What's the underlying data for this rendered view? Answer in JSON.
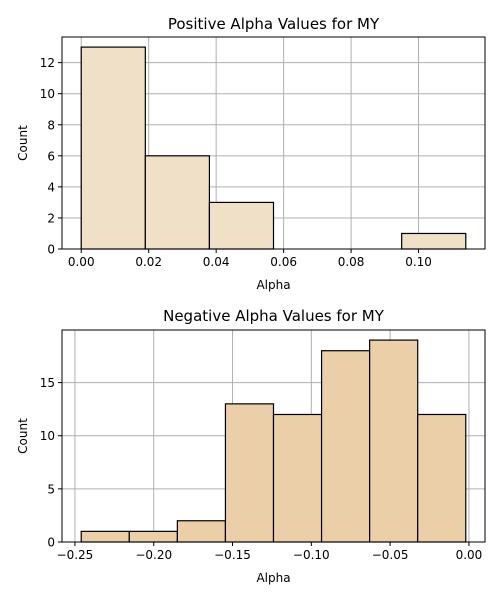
{
  "chart_data": [
    {
      "type": "bar",
      "title": "Positive Alpha Values for MY",
      "xlabel": "Alpha",
      "ylabel": "Count",
      "bar_color": "#f0e0c8",
      "bins": [
        {
          "x0": 0.0,
          "x1": 0.019,
          "count": 13
        },
        {
          "x0": 0.019,
          "x1": 0.038,
          "count": 6
        },
        {
          "x0": 0.038,
          "x1": 0.057,
          "count": 3
        },
        {
          "x0": 0.057,
          "x1": 0.076,
          "count": 0
        },
        {
          "x0": 0.076,
          "x1": 0.095,
          "count": 0
        },
        {
          "x0": 0.095,
          "x1": 0.114,
          "count": 1
        }
      ],
      "xlim": [
        -0.0057,
        0.1197
      ],
      "ylim": [
        0,
        13.65
      ],
      "xticks": [
        0.0,
        0.02,
        0.04,
        0.06,
        0.08,
        0.1
      ],
      "xtick_labels": [
        "0.00",
        "0.02",
        "0.04",
        "0.06",
        "0.08",
        "0.10"
      ],
      "yticks": [
        0,
        2,
        4,
        6,
        8,
        10,
        12
      ],
      "ytick_labels": [
        "0",
        "2",
        "4",
        "6",
        "8",
        "10",
        "12"
      ],
      "grid": true
    },
    {
      "type": "bar",
      "title": "Negative Alpha Values for MY",
      "xlabel": "Alpha",
      "ylabel": "Count",
      "bar_color": "#ebcfa8",
      "bins": [
        {
          "x0": -0.246,
          "x1": -0.2155,
          "count": 1
        },
        {
          "x0": -0.2155,
          "x1": -0.185,
          "count": 1
        },
        {
          "x0": -0.185,
          "x1": -0.1545,
          "count": 2
        },
        {
          "x0": -0.1545,
          "x1": -0.124,
          "count": 13
        },
        {
          "x0": -0.124,
          "x1": -0.0935,
          "count": 12
        },
        {
          "x0": -0.0935,
          "x1": -0.063,
          "count": 18
        },
        {
          "x0": -0.063,
          "x1": -0.0325,
          "count": 19
        },
        {
          "x0": -0.0325,
          "x1": -0.002,
          "count": 12
        }
      ],
      "xlim": [
        -0.2582,
        0.0102
      ],
      "ylim": [
        0,
        19.95
      ],
      "xticks": [
        -0.25,
        -0.2,
        -0.15,
        -0.1,
        -0.05,
        0.0
      ],
      "xtick_labels": [
        "−0.25",
        "−0.20",
        "−0.15",
        "−0.10",
        "−0.05",
        "0.00"
      ],
      "yticks": [
        0,
        5,
        10,
        15
      ],
      "ytick_labels": [
        "0",
        "5",
        "10",
        "15"
      ],
      "grid": true
    }
  ]
}
